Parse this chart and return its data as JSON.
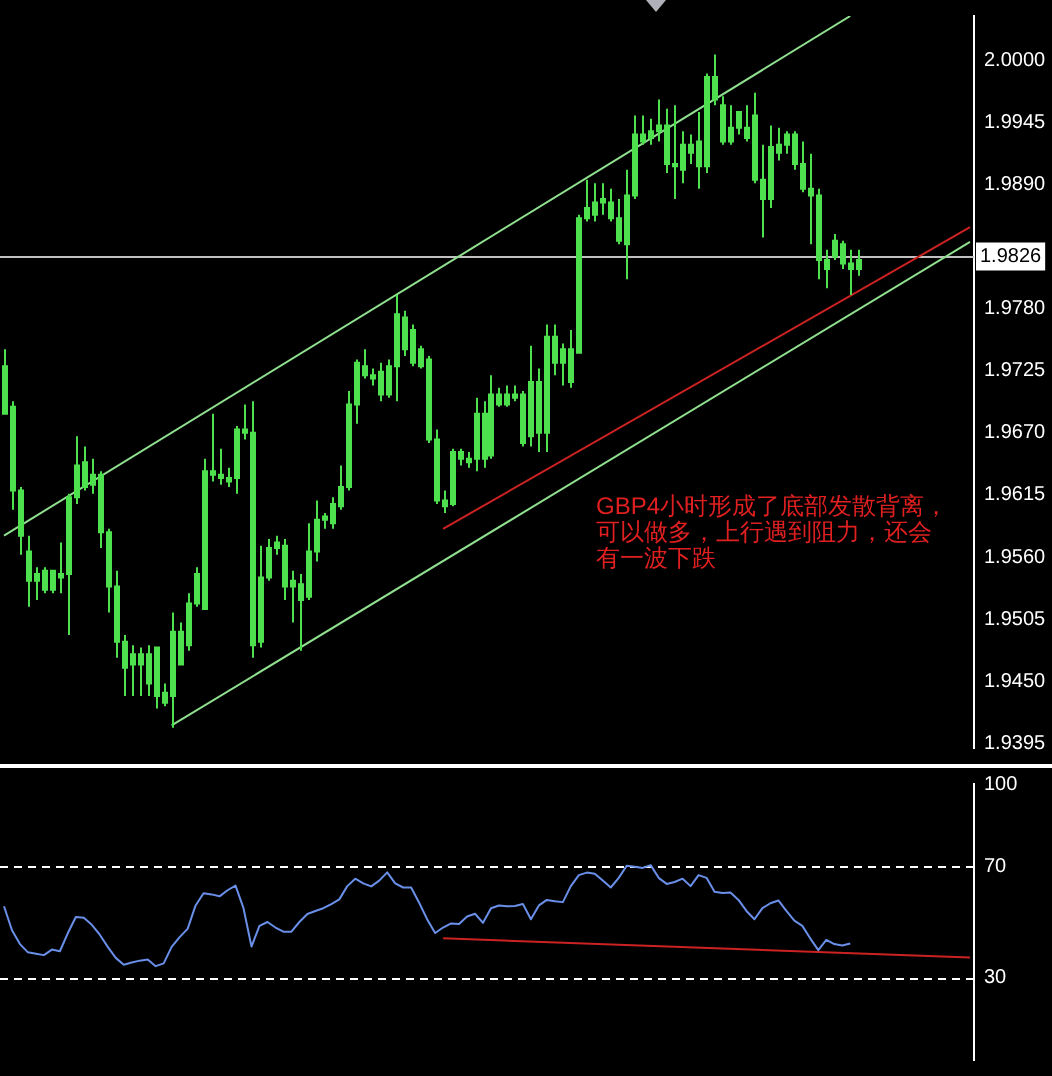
{
  "chart_data": [
    {
      "type": "candlestick",
      "color": "#4ee04e",
      "tick_labels": "y",
      "grid": false,
      "legend": false,
      "categories": [
        null,
        null,
        null,
        null,
        null,
        null,
        null,
        null,
        null,
        null,
        null,
        null,
        null,
        null,
        null,
        null,
        null,
        null,
        null,
        null,
        null,
        null,
        null,
        null,
        null,
        null,
        null,
        null,
        null,
        null,
        null,
        null,
        null,
        null,
        null,
        null,
        null,
        null,
        null,
        null,
        null,
        null,
        null,
        null,
        null,
        null,
        null,
        null,
        null,
        null,
        null,
        null,
        null,
        null,
        null,
        null,
        null,
        null,
        null,
        null,
        null,
        null,
        null,
        null,
        null,
        null,
        null,
        null,
        null,
        null,
        null,
        null,
        null,
        null,
        null,
        null,
        null,
        null,
        null,
        null,
        null,
        null,
        null,
        null,
        null,
        null,
        null,
        null,
        null,
        null,
        null,
        null,
        null,
        null,
        null,
        null,
        null,
        null,
        null,
        null,
        null,
        null,
        null,
        null,
        null,
        null,
        null,
        null,
        null,
        null,
        null,
        null,
        null,
        null,
        null,
        null,
        null,
        null,
        null,
        null,
        null,
        null
      ],
      "ohlc": [
        [
          1.9729,
          1.9744,
          1.9687,
          1.9687
        ],
        [
          1.9693,
          1.9698,
          1.9602,
          1.9619
        ],
        [
          1.9619,
          1.9622,
          1.9562,
          1.9579
        ],
        [
          1.9565,
          1.9579,
          1.9516,
          1.9539
        ],
        [
          1.9545,
          1.9551,
          1.9522,
          1.9539
        ],
        [
          1.9531,
          1.9551,
          1.9528,
          1.9548
        ],
        [
          1.9548,
          1.9548,
          1.9528,
          1.9531
        ],
        [
          1.9542,
          1.9573,
          1.9528,
          1.9545
        ],
        [
          1.9545,
          1.9616,
          1.9491,
          1.9613
        ],
        [
          1.9613,
          1.9667,
          1.9607,
          1.9641
        ],
        [
          1.9622,
          1.9658,
          1.9619,
          1.9644
        ],
        [
          1.9633,
          1.9647,
          1.9616,
          1.9624
        ],
        [
          1.9633,
          1.9636,
          1.9568,
          1.9582
        ],
        [
          1.9582,
          1.9585,
          1.9511,
          1.9534
        ],
        [
          1.9534,
          1.9548,
          1.9471,
          1.9485
        ],
        [
          1.9485,
          1.9491,
          1.9437,
          1.9462
        ],
        [
          1.9465,
          1.9482,
          1.9437,
          1.9474
        ],
        [
          1.9474,
          1.948,
          1.9437,
          1.9465
        ],
        [
          1.9474,
          1.9482,
          1.9437,
          1.9448
        ],
        [
          1.9437,
          1.948,
          1.9426,
          1.948
        ],
        [
          1.944,
          1.9448,
          1.9428,
          1.9431
        ],
        [
          1.9437,
          1.9511,
          1.9409,
          1.9494
        ],
        [
          1.9465,
          1.9502,
          1.9465,
          1.9494
        ],
        [
          1.9482,
          1.9528,
          1.9477,
          1.9519
        ],
        [
          1.9519,
          1.9551,
          1.9516,
          1.9545
        ],
        [
          1.9514,
          1.9647,
          1.9514,
          1.9636
        ],
        [
          1.9636,
          1.9687,
          1.9627,
          1.9633
        ],
        [
          1.9633,
          1.9656,
          1.9624,
          1.963
        ],
        [
          1.963,
          1.9639,
          1.9622,
          1.9627
        ],
        [
          1.963,
          1.9676,
          1.9616,
          1.9673
        ],
        [
          1.9673,
          1.9695,
          1.9664,
          1.967
        ],
        [
          1.967,
          1.9698,
          1.9471,
          1.9482
        ],
        [
          1.9485,
          1.957,
          1.948,
          1.9542
        ],
        [
          1.9542,
          1.9576,
          1.9539,
          1.9568
        ],
        [
          1.9568,
          1.9579,
          1.9562,
          1.9573
        ],
        [
          1.957,
          1.9576,
          1.9522,
          1.9534
        ],
        [
          1.9534,
          1.9548,
          1.9502,
          1.9539
        ],
        [
          1.9536,
          1.9545,
          1.9477,
          1.9522
        ],
        [
          1.9525,
          1.959,
          1.9522,
          1.9565
        ],
        [
          1.9565,
          1.961,
          1.9556,
          1.9593
        ],
        [
          1.9593,
          1.9599,
          1.9585,
          1.9596
        ],
        [
          1.959,
          1.9613,
          1.9585,
          1.9607
        ],
        [
          1.9605,
          1.9641,
          1.9602,
          1.9622
        ],
        [
          1.9622,
          1.9707,
          1.9619,
          1.9695
        ],
        [
          1.9695,
          1.9735,
          1.9678,
          1.9732
        ],
        [
          1.9729,
          1.9744,
          1.9718,
          1.9721
        ],
        [
          1.9721,
          1.9727,
          1.9712,
          1.9718
        ],
        [
          1.9724,
          1.9732,
          1.9698,
          1.9704
        ],
        [
          1.9704,
          1.9735,
          1.9701,
          1.9729
        ],
        [
          1.9729,
          1.9792,
          1.9698,
          1.9775
        ],
        [
          1.9772,
          1.9778,
          1.9738,
          1.9744
        ],
        [
          1.9761,
          1.9766,
          1.9729,
          1.9732
        ],
        [
          1.9744,
          1.9747,
          1.9727,
          1.9729
        ],
        [
          1.9735,
          1.9738,
          1.9661,
          1.9664
        ],
        [
          1.9664,
          1.9673,
          1.9607,
          1.961
        ],
        [
          1.961,
          1.9619,
          1.9599,
          1.9605
        ],
        [
          1.9607,
          1.9656,
          1.9605,
          1.9653
        ],
        [
          1.9653,
          1.9656,
          1.9641,
          1.9647
        ],
        [
          1.9647,
          1.9653,
          1.9639,
          1.9644
        ],
        [
          1.9647,
          1.9701,
          1.9636,
          1.9687
        ],
        [
          1.9687,
          1.9698,
          1.9639,
          1.9647
        ],
        [
          1.965,
          1.9721,
          1.9647,
          1.9704
        ],
        [
          1.9704,
          1.971,
          1.9693,
          1.9695
        ],
        [
          1.9695,
          1.9712,
          1.9693,
          1.9704
        ],
        [
          1.9704,
          1.9712,
          1.9698,
          1.9701
        ],
        [
          1.9704,
          1.9707,
          1.9658,
          1.9661
        ],
        [
          1.9667,
          1.9747,
          1.9658,
          1.9715
        ],
        [
          1.9715,
          1.9727,
          1.9653,
          1.967
        ],
        [
          1.967,
          1.9766,
          1.9653,
          1.9755
        ],
        [
          1.9755,
          1.9766,
          1.9721,
          1.9732
        ],
        [
          1.9732,
          1.9749,
          1.9712,
          1.9744
        ],
        [
          1.9744,
          1.9761,
          1.971,
          1.9715
        ],
        [
          1.9741,
          1.9863,
          1.9741,
          1.986
        ],
        [
          1.986,
          1.9894,
          1.9857,
          1.9869
        ],
        [
          1.9863,
          1.9891,
          1.9857,
          1.9874
        ],
        [
          1.9874,
          1.9891,
          1.9863,
          1.9877
        ],
        [
          1.9874,
          1.9886,
          1.9857,
          1.986
        ],
        [
          1.986,
          1.9877,
          1.9837,
          1.984
        ],
        [
          1.9837,
          1.9903,
          1.9806,
          1.988
        ],
        [
          1.988,
          1.9951,
          1.9877,
          1.9934
        ],
        [
          1.9934,
          1.9951,
          1.9925,
          1.9928
        ],
        [
          1.9931,
          1.9948,
          1.9925,
          1.9937
        ],
        [
          1.9937,
          1.9965,
          1.9928,
          1.9942
        ],
        [
          1.9942,
          1.9957,
          1.99,
          1.9908
        ],
        [
          1.9908,
          1.996,
          1.9877,
          1.9906
        ],
        [
          1.9903,
          1.9937,
          1.9891,
          1.9925
        ],
        [
          1.9925,
          1.9934,
          1.9908,
          1.9918
        ],
        [
          1.9928,
          1.9954,
          1.9886,
          1.9906
        ],
        [
          1.9906,
          1.9988,
          1.99,
          1.9985
        ],
        [
          1.9985,
          2.0005,
          1.996,
          1.9965
        ],
        [
          1.996,
          1.9968,
          1.9925,
          1.9928
        ],
        [
          1.9928,
          1.996,
          1.9925,
          1.994
        ],
        [
          1.994,
          1.9954,
          1.9934,
          1.9954
        ],
        [
          1.994,
          1.996,
          1.9928,
          1.9931
        ],
        [
          1.9951,
          1.9971,
          1.9891,
          1.9894
        ],
        [
          1.9894,
          1.9925,
          1.9843,
          1.9877
        ],
        [
          1.9877,
          1.9942,
          1.9869,
          1.9923
        ],
        [
          1.9918,
          1.994,
          1.9911,
          1.9925
        ],
        [
          1.9925,
          1.9937,
          1.9917,
          1.9934
        ],
        [
          1.9934,
          1.9937,
          1.9903,
          1.9908
        ],
        [
          1.9908,
          1.9928,
          1.9883,
          1.9886
        ],
        [
          1.9886,
          1.9917,
          1.9837,
          1.988
        ],
        [
          1.988,
          1.9886,
          1.9806,
          1.9823
        ],
        [
          1.9823,
          1.9832,
          1.9798,
          1.9815
        ],
        [
          1.9826,
          1.9846,
          1.9823,
          1.984
        ],
        [
          1.9837,
          1.984,
          1.9815,
          1.982
        ],
        [
          1.982,
          1.9832,
          1.9792,
          1.9815
        ],
        [
          1.9815,
          1.9832,
          1.9809,
          1.9823
        ],
        null,
        null,
        null,
        null,
        null,
        null,
        null,
        null,
        null,
        null,
        null,
        null,
        null,
        null
      ],
      "series": [
        {
          "type": "line",
          "color": "#8fe08f",
          "values": [
            1.9579,
            null,
            null,
            null,
            null,
            null,
            null,
            null,
            null,
            null,
            null,
            null,
            null,
            null,
            null,
            null,
            null,
            null,
            null,
            null,
            null,
            null,
            null,
            null,
            null,
            null,
            null,
            null,
            null,
            null,
            null,
            null,
            null,
            null,
            null,
            null,
            null,
            null,
            null,
            null,
            null,
            null,
            null,
            null,
            null,
            null,
            null,
            null,
            null,
            null,
            null,
            null,
            null,
            null,
            null,
            null,
            null,
            null,
            null,
            null,
            null,
            null,
            null,
            null,
            null,
            null,
            null,
            null,
            null,
            null,
            null,
            null,
            null,
            null,
            null,
            null,
            null,
            null,
            null,
            null,
            null,
            null,
            null,
            null,
            null,
            null,
            null,
            null,
            null,
            null,
            null,
            null,
            null,
            null,
            null,
            null,
            null,
            null,
            null,
            null,
            null,
            null,
            null,
            null,
            null,
            null,
            2.0039,
            null,
            null,
            null,
            null,
            null,
            null,
            null,
            null,
            null,
            null,
            null,
            null,
            null,
            null,
            null
          ]
        },
        {
          "type": "line",
          "color": "#8fe08f",
          "values": [
            null,
            null,
            null,
            null,
            null,
            null,
            null,
            null,
            null,
            null,
            null,
            null,
            null,
            null,
            null,
            null,
            null,
            null,
            null,
            null,
            null,
            1.9411,
            null,
            null,
            null,
            null,
            null,
            null,
            null,
            null,
            null,
            null,
            null,
            null,
            null,
            null,
            null,
            null,
            null,
            null,
            null,
            null,
            null,
            null,
            null,
            null,
            null,
            null,
            null,
            null,
            null,
            null,
            null,
            null,
            null,
            null,
            null,
            null,
            null,
            null,
            null,
            null,
            null,
            null,
            null,
            null,
            null,
            null,
            null,
            null,
            null,
            null,
            null,
            null,
            null,
            null,
            null,
            null,
            null,
            null,
            null,
            null,
            null,
            null,
            null,
            null,
            null,
            null,
            null,
            null,
            null,
            null,
            null,
            null,
            null,
            null,
            null,
            null,
            null,
            null,
            null,
            null,
            null,
            null,
            null,
            null,
            null,
            null,
            null,
            null,
            null,
            null,
            null,
            null,
            null,
            null,
            null,
            null,
            null,
            null,
            null,
            1.9839
          ]
        },
        {
          "type": "line",
          "color": "#cc2222",
          "values": [
            null,
            null,
            null,
            null,
            null,
            null,
            null,
            null,
            null,
            null,
            null,
            null,
            null,
            null,
            null,
            null,
            null,
            null,
            null,
            null,
            null,
            null,
            null,
            null,
            null,
            null,
            null,
            null,
            null,
            null,
            null,
            null,
            null,
            null,
            null,
            null,
            null,
            null,
            null,
            null,
            null,
            null,
            null,
            null,
            null,
            null,
            null,
            null,
            null,
            null,
            null,
            null,
            null,
            null,
            null,
            1.9585,
            null,
            null,
            null,
            null,
            null,
            null,
            null,
            null,
            null,
            null,
            null,
            null,
            null,
            null,
            null,
            null,
            null,
            null,
            null,
            null,
            null,
            null,
            null,
            null,
            null,
            null,
            null,
            null,
            null,
            null,
            null,
            null,
            null,
            null,
            null,
            null,
            null,
            null,
            null,
            null,
            null,
            null,
            null,
            null,
            null,
            null,
            null,
            null,
            null,
            null,
            null,
            null,
            null,
            null,
            null,
            null,
            null,
            null,
            null,
            null,
            null,
            null,
            null,
            null,
            null,
            1.9852
          ]
        }
      ],
      "ylim": [
        1.9391,
        2.0039
      ],
      "yticks": [
        {
          "value": 2.0,
          "label": "2.0000"
        },
        {
          "value": 1.9945,
          "label": "1.9945"
        },
        {
          "value": 1.989,
          "label": "1.9890"
        },
        {
          "value": 1.978,
          "label": "1.9780"
        },
        {
          "value": 1.9725,
          "label": "1.9725"
        },
        {
          "value": 1.967,
          "label": "1.9670"
        },
        {
          "value": 1.9615,
          "label": "1.9615"
        },
        {
          "value": 1.956,
          "label": "1.9560"
        },
        {
          "value": 1.9505,
          "label": "1.9505"
        },
        {
          "value": 1.945,
          "label": "1.9450"
        },
        {
          "value": 1.9395,
          "label": "1.9395"
        }
      ],
      "ref_lines": [
        {
          "axis": "y",
          "value": 1.9826,
          "label": "1.9826",
          "color": "#c0c0c0"
        }
      ],
      "annotations": [
        "GBP4小时形成了底部发散背离，可以做多，上行遇到阻力，还会有一波下跌"
      ]
    },
    {
      "type": "line",
      "tick_labels": "y",
      "grid": false,
      "legend": false,
      "categories": [
        null,
        null,
        null,
        null,
        null,
        null,
        null,
        null,
        null,
        null,
        null,
        null,
        null,
        null,
        null,
        null,
        null,
        null,
        null,
        null,
        null,
        null,
        null,
        null,
        null,
        null,
        null,
        null,
        null,
        null,
        null,
        null,
        null,
        null,
        null,
        null,
        null,
        null,
        null,
        null,
        null,
        null,
        null,
        null,
        null,
        null,
        null,
        null,
        null,
        null,
        null,
        null,
        null,
        null,
        null,
        null,
        null,
        null,
        null,
        null,
        null,
        null,
        null,
        null,
        null,
        null,
        null,
        null,
        null,
        null,
        null,
        null,
        null,
        null,
        null,
        null,
        null,
        null,
        null,
        null,
        null,
        null,
        null,
        null,
        null,
        null,
        null,
        null,
        null,
        null,
        null,
        null,
        null,
        null,
        null,
        null,
        null,
        null,
        null,
        null,
        null,
        null,
        null,
        null,
        null,
        null,
        null,
        null,
        null,
        null,
        null,
        null,
        null,
        null,
        null,
        null,
        null,
        null,
        null,
        null,
        null,
        null
      ],
      "series": [
        {
          "color": "#6a8fe8",
          "values": [
            55.7,
            47,
            42,
            39,
            38.5,
            38,
            40,
            39.4,
            46,
            51.8,
            51.5,
            49,
            45.4,
            41,
            37,
            34.5,
            35.3,
            36,
            36.4,
            34,
            35,
            41,
            44.5,
            47.5,
            56,
            60.4,
            60,
            59.3,
            61.5,
            63.2,
            55,
            41.1,
            48.6,
            50,
            48,
            46.5,
            46.5,
            50,
            52.9,
            54,
            55,
            56.5,
            58.2,
            63,
            65.7,
            64,
            62.9,
            65,
            68,
            64,
            62.5,
            62.5,
            57,
            51,
            46,
            48,
            49.5,
            49.3,
            52,
            53,
            49.7,
            55,
            56,
            55.7,
            55.8,
            56.5,
            51,
            56,
            58,
            57.5,
            57.2,
            63,
            67,
            67.9,
            67.5,
            65,
            62.5,
            66,
            70.4,
            70,
            69.6,
            70.6,
            66,
            63.8,
            64.5,
            65.7,
            63,
            67,
            66,
            61,
            60.5,
            60.7,
            58,
            54,
            51,
            55,
            56.8,
            57.8,
            54,
            50.5,
            48.6,
            44,
            39.8,
            43.5,
            42,
            41.5,
            42.2,
            null,
            null,
            null,
            null,
            null,
            null,
            null,
            null,
            null,
            null,
            null,
            null,
            null,
            null,
            null
          ]
        },
        {
          "color": "#cc2222",
          "values": [
            null,
            null,
            null,
            null,
            null,
            null,
            null,
            null,
            null,
            null,
            null,
            null,
            null,
            null,
            null,
            null,
            null,
            null,
            null,
            null,
            null,
            null,
            null,
            null,
            null,
            null,
            null,
            null,
            null,
            null,
            null,
            null,
            null,
            null,
            null,
            null,
            null,
            null,
            null,
            null,
            null,
            null,
            null,
            null,
            null,
            null,
            null,
            null,
            null,
            null,
            null,
            null,
            null,
            null,
            null,
            44.1,
            null,
            null,
            null,
            null,
            null,
            null,
            null,
            null,
            null,
            null,
            null,
            null,
            null,
            null,
            null,
            null,
            null,
            null,
            null,
            null,
            null,
            null,
            null,
            null,
            null,
            null,
            null,
            null,
            null,
            null,
            null,
            null,
            null,
            null,
            null,
            null,
            null,
            null,
            null,
            null,
            null,
            null,
            null,
            null,
            null,
            null,
            null,
            null,
            null,
            null,
            null,
            null,
            null,
            null,
            null,
            null,
            null,
            null,
            null,
            null,
            null,
            null,
            null,
            null,
            null,
            37.1
          ]
        }
      ],
      "ylim": [
        0,
        100
      ],
      "yticks": [
        100,
        70,
        30
      ],
      "ref_lines": [
        {
          "axis": "y",
          "value": 70,
          "color": "#ffffff",
          "line_style": "dashed"
        },
        {
          "axis": "y",
          "value": 30,
          "color": "#ffffff",
          "line_style": "dashed"
        }
      ]
    }
  ]
}
